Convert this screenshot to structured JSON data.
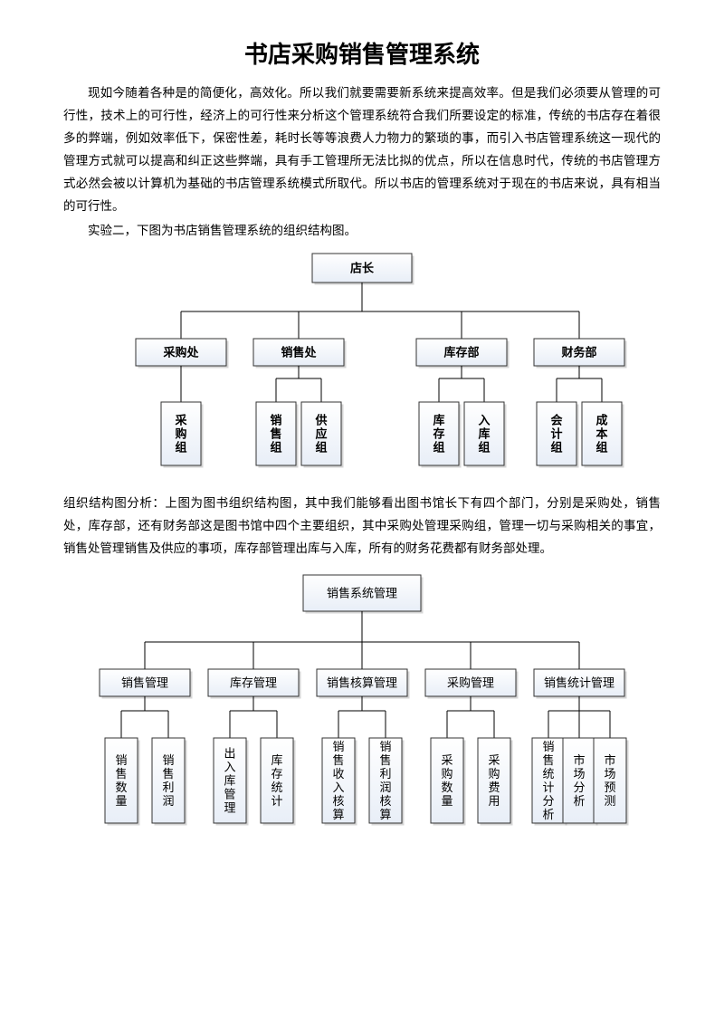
{
  "title": "书店采购销售管理系统",
  "intro_p1": "现如今随着各种是的简便化，高效化。所以我们就要需要新系统来提高效率。但是我们必须要从管理的可行性，技术上的可行性，经济上的可行性来分析这个管理系统符合我们所要设定的标准，传统的书店存在着很多的弊端，例如效率低下，保密性差，耗时长等等浪费人力物力的繁琐的事，而引入书店管理系统这一现代的管理方式就可以提高和纠正这些弊端，具有手工管理所无法比拟的优点，所以在信息时代，传统的书店管理方式必然会被以计算机为基础的书店管理系统模式所取代。所以书店的管理系统对于现在的书店来说，具有相当的可行性。",
  "intro_p2": "实验二，下图为书店销售管理系统的组织结构图。",
  "analysis": "组织结构图分析：上图为图书组织结构图，其中我们能够看出图书馆长下有四个部门，分别是采购处，销售处，库存部，还有财务部这是图书馆中四个主要组织，其中采购处管理采购组，管理一切与采购相关的事宜，销售处管理销售及供应的事项，库存部管理出库与入库，所有的财务花费都有财务部处理。",
  "chart1": {
    "type": "tree",
    "root": "店长",
    "level2": [
      "采购处",
      "销售处",
      "库存部",
      "财务部"
    ],
    "level3": [
      [
        "采购组"
      ],
      [
        "销售组",
        "供应组"
      ],
      [
        "库存组",
        "入库组"
      ],
      [
        "会计组",
        "成本组"
      ]
    ],
    "node_fill_top": "#ffffff",
    "node_fill_bottom": "#e6ecf5",
    "node_stroke": "#333333",
    "shadow_color": "#888888",
    "edge_color": "#000000",
    "label_fontsize": 13
  },
  "chart2": {
    "type": "tree",
    "root": "销售系统管理",
    "level2": [
      "销售管理",
      "库存管理",
      "销售核算管理",
      "采购管理",
      "销售统计管理"
    ],
    "level3": [
      [
        "销售数量",
        "销售利润"
      ],
      [
        "出入库管理",
        "库存统计"
      ],
      [
        "销售收入核算",
        "销售利润核算"
      ],
      [
        "采购数量",
        "采购费用"
      ],
      [
        "销售统计分析",
        "市场分析",
        "市场预测"
      ]
    ],
    "node_fill_top": "#ffffff",
    "node_fill_bottom": "#e6ecf5",
    "node_stroke": "#333333",
    "shadow_color": "#888888",
    "edge_color": "#000000",
    "label_fontsize": 13
  }
}
